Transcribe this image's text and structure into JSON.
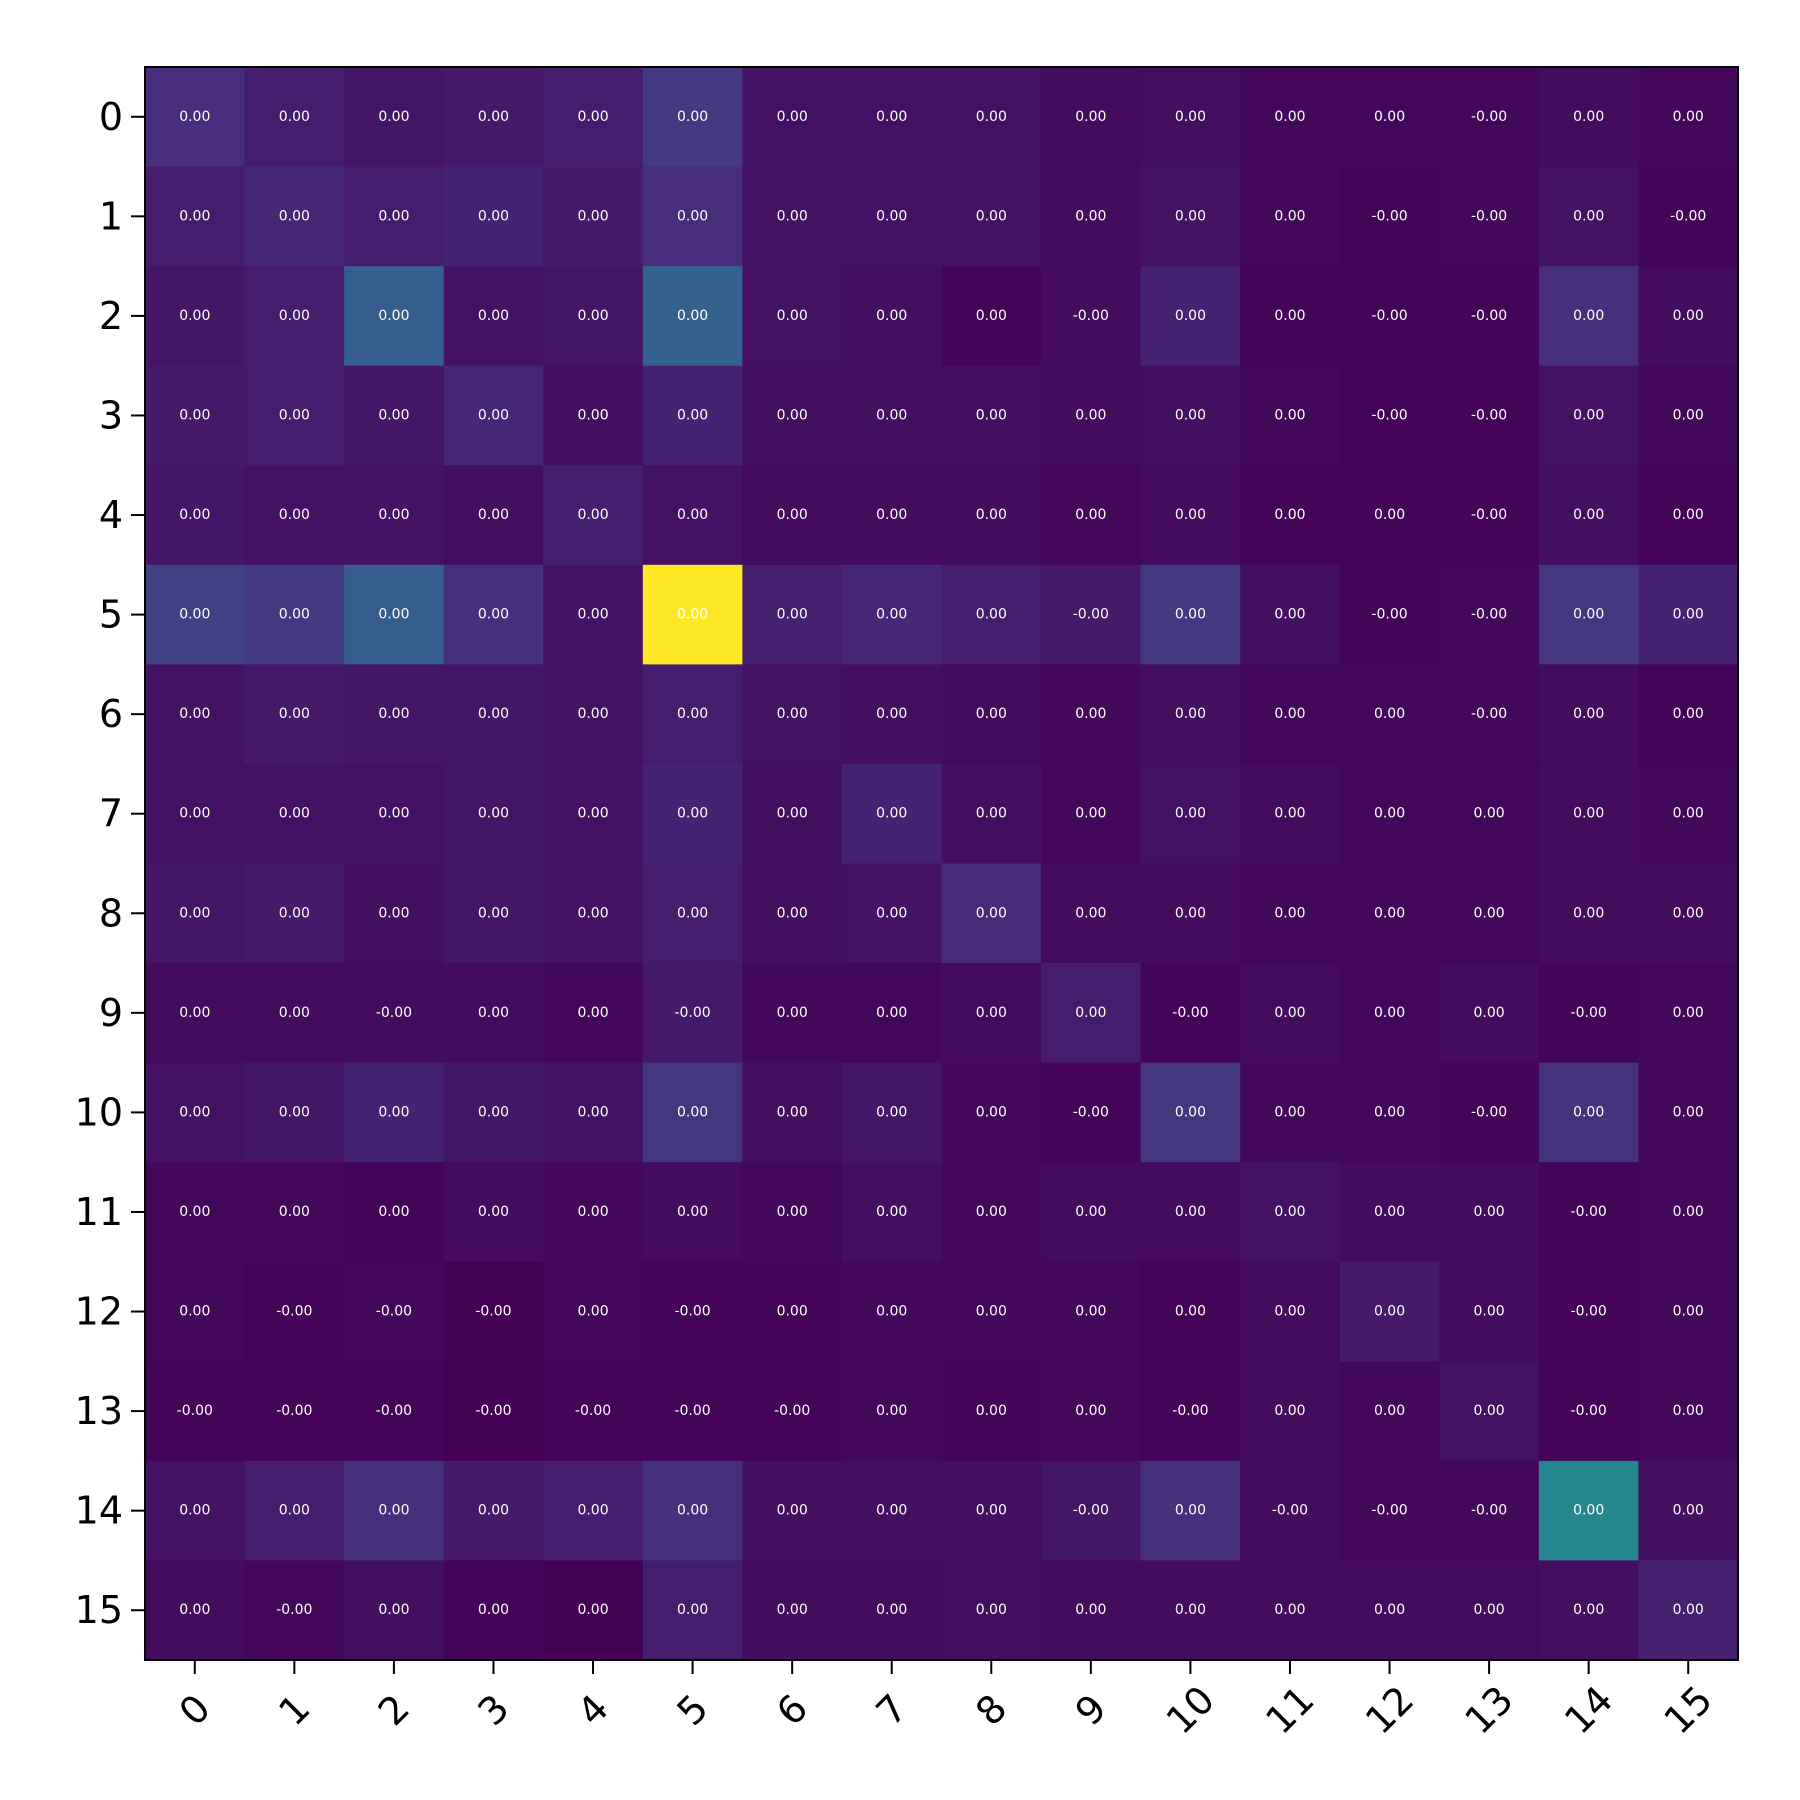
{
  "chart_data": {
    "type": "heatmap",
    "title": "",
    "xlabel": "",
    "ylabel": "",
    "colormap": "viridis",
    "x_tick_labels": [
      "0",
      "1",
      "2",
      "3",
      "4",
      "5",
      "6",
      "7",
      "8",
      "9",
      "10",
      "11",
      "12",
      "13",
      "14",
      "15"
    ],
    "y_tick_labels": [
      "0",
      "1",
      "2",
      "3",
      "4",
      "5",
      "6",
      "7",
      "8",
      "9",
      "10",
      "11",
      "12",
      "13",
      "14",
      "15"
    ],
    "x_tick_rotation_deg": 45,
    "cell_labels": [
      [
        "0.00",
        "0.00",
        "0.00",
        "0.00",
        "0.00",
        "0.00",
        "0.00",
        "0.00",
        "0.00",
        "0.00",
        "0.00",
        "0.00",
        "0.00",
        "-0.00",
        "0.00",
        "0.00"
      ],
      [
        "0.00",
        "0.00",
        "0.00",
        "0.00",
        "0.00",
        "0.00",
        "0.00",
        "0.00",
        "0.00",
        "0.00",
        "0.00",
        "0.00",
        "-0.00",
        "-0.00",
        "0.00",
        "-0.00"
      ],
      [
        "0.00",
        "0.00",
        "0.00",
        "0.00",
        "0.00",
        "0.00",
        "0.00",
        "0.00",
        "0.00",
        "-0.00",
        "0.00",
        "0.00",
        "-0.00",
        "-0.00",
        "0.00",
        "0.00"
      ],
      [
        "0.00",
        "0.00",
        "0.00",
        "0.00",
        "0.00",
        "0.00",
        "0.00",
        "0.00",
        "0.00",
        "0.00",
        "0.00",
        "0.00",
        "-0.00",
        "-0.00",
        "0.00",
        "0.00"
      ],
      [
        "0.00",
        "0.00",
        "0.00",
        "0.00",
        "0.00",
        "0.00",
        "0.00",
        "0.00",
        "0.00",
        "0.00",
        "0.00",
        "0.00",
        "0.00",
        "-0.00",
        "0.00",
        "0.00"
      ],
      [
        "0.00",
        "0.00",
        "0.00",
        "0.00",
        "0.00",
        "0.00",
        "0.00",
        "0.00",
        "0.00",
        "-0.00",
        "0.00",
        "0.00",
        "-0.00",
        "-0.00",
        "0.00",
        "0.00"
      ],
      [
        "0.00",
        "0.00",
        "0.00",
        "0.00",
        "0.00",
        "0.00",
        "0.00",
        "0.00",
        "0.00",
        "0.00",
        "0.00",
        "0.00",
        "0.00",
        "-0.00",
        "0.00",
        "0.00"
      ],
      [
        "0.00",
        "0.00",
        "0.00",
        "0.00",
        "0.00",
        "0.00",
        "0.00",
        "0.00",
        "0.00",
        "0.00",
        "0.00",
        "0.00",
        "0.00",
        "0.00",
        "0.00",
        "0.00"
      ],
      [
        "0.00",
        "0.00",
        "0.00",
        "0.00",
        "0.00",
        "0.00",
        "0.00",
        "0.00",
        "0.00",
        "0.00",
        "0.00",
        "0.00",
        "0.00",
        "0.00",
        "0.00",
        "0.00"
      ],
      [
        "0.00",
        "0.00",
        "-0.00",
        "0.00",
        "0.00",
        "-0.00",
        "0.00",
        "0.00",
        "0.00",
        "0.00",
        "-0.00",
        "0.00",
        "0.00",
        "0.00",
        "-0.00",
        "0.00"
      ],
      [
        "0.00",
        "0.00",
        "0.00",
        "0.00",
        "0.00",
        "0.00",
        "0.00",
        "0.00",
        "0.00",
        "-0.00",
        "0.00",
        "0.00",
        "0.00",
        "-0.00",
        "0.00",
        "0.00"
      ],
      [
        "0.00",
        "0.00",
        "0.00",
        "0.00",
        "0.00",
        "0.00",
        "0.00",
        "0.00",
        "0.00",
        "0.00",
        "0.00",
        "0.00",
        "0.00",
        "0.00",
        "-0.00",
        "0.00"
      ],
      [
        "0.00",
        "-0.00",
        "-0.00",
        "-0.00",
        "0.00",
        "-0.00",
        "0.00",
        "0.00",
        "0.00",
        "0.00",
        "0.00",
        "0.00",
        "0.00",
        "0.00",
        "-0.00",
        "0.00"
      ],
      [
        "-0.00",
        "-0.00",
        "-0.00",
        "-0.00",
        "-0.00",
        "-0.00",
        "-0.00",
        "0.00",
        "0.00",
        "0.00",
        "-0.00",
        "0.00",
        "0.00",
        "0.00",
        "-0.00",
        "0.00"
      ],
      [
        "0.00",
        "0.00",
        "0.00",
        "0.00",
        "0.00",
        "0.00",
        "0.00",
        "0.00",
        "0.00",
        "-0.00",
        "0.00",
        "-0.00",
        "-0.00",
        "-0.00",
        "0.00",
        "0.00"
      ],
      [
        "0.00",
        "-0.00",
        "0.00",
        "0.00",
        "0.00",
        "0.00",
        "0.00",
        "0.00",
        "0.00",
        "0.00",
        "0.00",
        "0.00",
        "0.00",
        "0.00",
        "0.00",
        "0.00"
      ]
    ],
    "relative_intensity": [
      [
        0.13,
        0.08,
        0.06,
        0.07,
        0.08,
        0.17,
        0.05,
        0.05,
        0.05,
        0.03,
        0.04,
        0.02,
        0.02,
        0.02,
        0.03,
        0.02
      ],
      [
        0.08,
        0.11,
        0.08,
        0.1,
        0.07,
        0.13,
        0.05,
        0.05,
        0.05,
        0.03,
        0.05,
        0.02,
        0.01,
        0.02,
        0.05,
        0.01
      ],
      [
        0.06,
        0.08,
        0.3,
        0.05,
        0.06,
        0.32,
        0.05,
        0.04,
        0.01,
        0.03,
        0.1,
        0.01,
        0.01,
        0.01,
        0.14,
        0.03
      ],
      [
        0.07,
        0.08,
        0.06,
        0.11,
        0.04,
        0.1,
        0.04,
        0.04,
        0.04,
        0.03,
        0.04,
        0.02,
        0.01,
        0.01,
        0.05,
        0.02
      ],
      [
        0.06,
        0.05,
        0.05,
        0.04,
        0.09,
        0.05,
        0.03,
        0.03,
        0.03,
        0.02,
        0.03,
        0.01,
        0.01,
        0.01,
        0.04,
        0.01
      ],
      [
        0.2,
        0.17,
        0.3,
        0.14,
        0.05,
        1.0,
        0.09,
        0.11,
        0.08,
        0.07,
        0.17,
        0.04,
        0.01,
        0.02,
        0.16,
        0.1
      ],
      [
        0.05,
        0.07,
        0.06,
        0.06,
        0.05,
        0.08,
        0.05,
        0.04,
        0.03,
        0.02,
        0.04,
        0.02,
        0.02,
        0.02,
        0.03,
        0.01
      ],
      [
        0.05,
        0.05,
        0.05,
        0.06,
        0.05,
        0.1,
        0.04,
        0.1,
        0.04,
        0.02,
        0.05,
        0.03,
        0.02,
        0.02,
        0.03,
        0.02
      ],
      [
        0.06,
        0.07,
        0.04,
        0.06,
        0.05,
        0.08,
        0.04,
        0.05,
        0.12,
        0.03,
        0.03,
        0.02,
        0.02,
        0.02,
        0.03,
        0.03
      ],
      [
        0.03,
        0.03,
        0.03,
        0.03,
        0.02,
        0.07,
        0.02,
        0.02,
        0.03,
        0.08,
        0.01,
        0.03,
        0.02,
        0.03,
        0.01,
        0.02
      ],
      [
        0.05,
        0.06,
        0.1,
        0.06,
        0.05,
        0.16,
        0.04,
        0.06,
        0.02,
        0.01,
        0.16,
        0.02,
        0.02,
        0.01,
        0.15,
        0.02
      ],
      [
        0.02,
        0.02,
        0.01,
        0.03,
        0.02,
        0.03,
        0.02,
        0.04,
        0.02,
        0.03,
        0.03,
        0.05,
        0.03,
        0.03,
        0.01,
        0.02
      ],
      [
        0.02,
        0.01,
        0.02,
        0.0,
        0.02,
        0.01,
        0.01,
        0.02,
        0.02,
        0.02,
        0.01,
        0.03,
        0.07,
        0.03,
        0.01,
        0.02
      ],
      [
        0.01,
        0.01,
        0.01,
        0.0,
        0.01,
        0.01,
        0.01,
        0.02,
        0.01,
        0.02,
        0.01,
        0.03,
        0.02,
        0.05,
        0.01,
        0.02
      ],
      [
        0.05,
        0.08,
        0.14,
        0.07,
        0.08,
        0.14,
        0.04,
        0.04,
        0.04,
        0.06,
        0.14,
        0.03,
        0.02,
        0.02,
        0.46,
        0.04
      ],
      [
        0.03,
        0.02,
        0.04,
        0.01,
        0.0,
        0.08,
        0.03,
        0.03,
        0.04,
        0.03,
        0.03,
        0.03,
        0.03,
        0.03,
        0.04,
        0.09
      ]
    ],
    "grid": false,
    "legend": "none"
  }
}
